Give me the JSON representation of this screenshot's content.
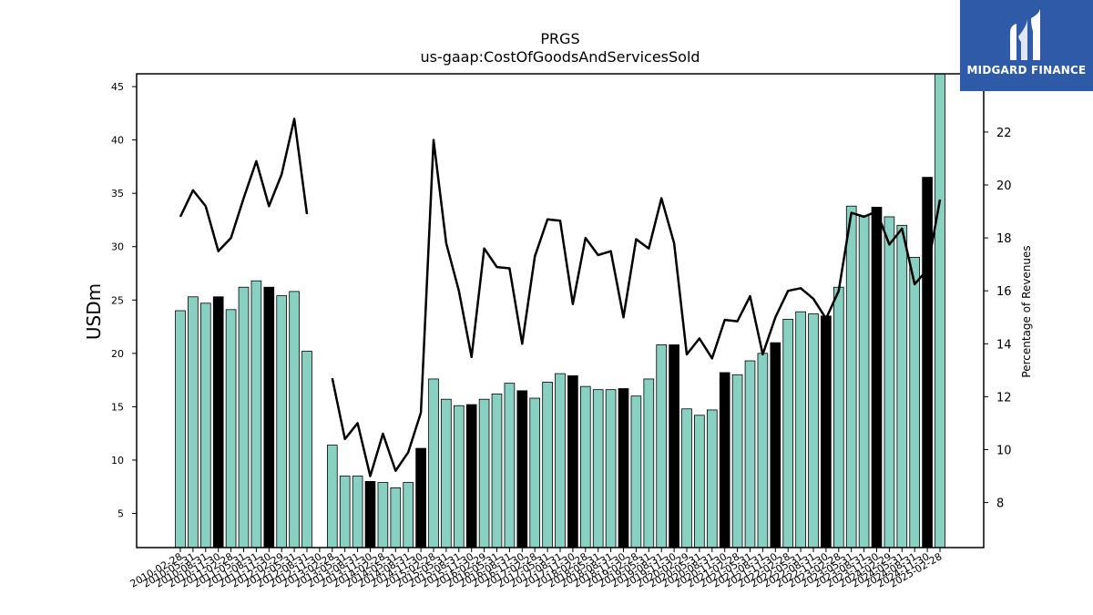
{
  "brand": {
    "name": "MIDGARD FINANCE",
    "mark": "logo-icon"
  },
  "chart_data": {
    "type": "bar",
    "title": "PRGS",
    "subtitle": "us-gaap:CostOfGoodsAndServicesSold",
    "ylabel": "USDm",
    "y2label": "Percentage of Revenues",
    "ylim": [
      1.8,
      46.2
    ],
    "y2lim": [
      6.3,
      24.2
    ],
    "yticks": [
      5,
      10,
      15,
      20,
      25,
      30,
      35,
      40,
      45
    ],
    "y2ticks": [
      8,
      10,
      12,
      14,
      16,
      18,
      20,
      22
    ],
    "colors": {
      "quarter": "#88d1c2",
      "annual": "#000000",
      "line": "#000000"
    },
    "categories": [
      "2010-02-28",
      "2010-05-31",
      "2010-08-31",
      "2010-11-30",
      "2011-02-28",
      "2011-05-31",
      "2011-08-31",
      "2011-11-30",
      "2012-02-29",
      "2012-05-31",
      "2012-08-31",
      "2012-11-30",
      "2013-02-28",
      "2013-05-31",
      "2013-08-31",
      "2013-11-30",
      "2014-02-28",
      "2014-05-31",
      "2014-08-31",
      "2014-11-30",
      "2015-02-28",
      "2015-05-31",
      "2015-08-31",
      "2015-11-30",
      "2016-02-29",
      "2016-05-31",
      "2016-08-31",
      "2016-11-30",
      "2017-02-28",
      "2017-05-31",
      "2017-08-31",
      "2017-11-30",
      "2018-02-28",
      "2018-05-31",
      "2018-08-31",
      "2018-11-30",
      "2019-02-28",
      "2019-05-31",
      "2019-08-31",
      "2019-11-30",
      "2020-02-29",
      "2020-05-31",
      "2020-08-31",
      "2020-11-30",
      "2021-02-28",
      "2021-05-31",
      "2021-08-31",
      "2021-11-30",
      "2022-02-28",
      "2022-05-31",
      "2022-08-31",
      "2022-11-30",
      "2023-02-28",
      "2023-05-31",
      "2023-08-31",
      "2023-11-30",
      "2024-02-29",
      "2024-05-31",
      "2024-08-31",
      "2024-11-30",
      "2025-02-28"
    ],
    "xtick_labels": [
      "2010-02-28",
      "2010-05-31",
      "2010-08-31",
      "2010-11-30",
      "2011-02-28",
      "2011-05-31",
      "2011-08-31",
      "2011-11-30",
      "2012-02-29",
      "2012-05-31",
      "2012-08-31",
      "2012-11-30",
      "2013-02-28",
      "2013-05-31",
      "2013-08-31",
      "2013-11-30",
      "2014-02-28",
      "2014-05-31",
      "2014-08-31",
      "2014-11-30",
      "2015-02-28",
      "2015-05-31",
      "2015-08-31",
      "2015-11-30",
      "2016-02-29",
      "2016-05-31",
      "2016-08-31",
      "2016-11-30",
      "2017-02-28",
      "2017-05-31",
      "2017-08-31",
      "2017-11-30",
      "2018-02-28",
      "2018-05-31",
      "2018-08-31",
      "2018-11-30",
      "2019-02-28",
      "2019-05-31",
      "2019-08-31",
      "2019-11-30",
      "2020-02-29",
      "2020-05-31",
      "2020-08-31",
      "2020-11-30",
      "2021-02-28",
      "2021-05-31",
      "2021-08-31",
      "2021-11-30",
      "2022-02-28",
      "2022-05-31",
      "2022-08-31",
      "2022-11-30",
      "2023-02-28",
      "2023-05-31",
      "2023-08-31",
      "2023-11-30",
      "2024-02-29",
      "2024-05-31",
      "2024-08-31",
      "2024-11-30",
      "2025-02-28"
    ],
    "series": [
      {
        "type": "bar",
        "axis": "left",
        "values": [
          24.0,
          25.3,
          24.7,
          25.3,
          24.1,
          26.2,
          26.8,
          26.2,
          25.4,
          25.8,
          20.2,
          null,
          11.4,
          8.5,
          8.5,
          8.0,
          7.9,
          7.4,
          7.9,
          11.1,
          17.6,
          15.7,
          15.1,
          15.2,
          15.7,
          16.2,
          17.2,
          16.5,
          15.8,
          17.3,
          18.1,
          17.9,
          16.9,
          16.6,
          16.6,
          16.7,
          16.0,
          17.6,
          20.8,
          20.8,
          14.8,
          14.2,
          14.7,
          18.2,
          18.0,
          19.3,
          20.0,
          21.0,
          23.2,
          23.9,
          23.7,
          23.5,
          26.2,
          33.8,
          32.9,
          33.7,
          32.8,
          32.0,
          29.0,
          36.5,
          46.4
        ],
        "highlight": [
          false,
          false,
          false,
          true,
          false,
          false,
          false,
          true,
          false,
          false,
          false,
          true,
          false,
          false,
          false,
          true,
          false,
          false,
          false,
          true,
          false,
          false,
          false,
          true,
          false,
          false,
          false,
          true,
          false,
          false,
          false,
          true,
          false,
          false,
          false,
          true,
          false,
          false,
          false,
          true,
          false,
          false,
          false,
          true,
          false,
          false,
          false,
          true,
          false,
          false,
          false,
          true,
          false,
          false,
          false,
          true,
          false,
          false,
          false,
          true,
          false
        ]
      },
      {
        "type": "line",
        "axis": "right",
        "values": [
          18.8,
          19.8,
          19.2,
          17.5,
          18.0,
          19.5,
          20.9,
          19.2,
          20.4,
          22.5,
          18.9,
          null,
          12.7,
          10.4,
          11.0,
          9.0,
          10.6,
          9.2,
          9.9,
          11.4,
          21.7,
          17.8,
          16.0,
          13.5,
          17.6,
          16.9,
          16.85,
          14.0,
          17.3,
          18.7,
          18.65,
          15.5,
          18.0,
          17.35,
          17.5,
          15.0,
          17.95,
          17.6,
          19.5,
          17.8,
          13.6,
          14.2,
          13.45,
          14.9,
          14.85,
          15.8,
          13.6,
          15.0,
          16.0,
          16.1,
          15.7,
          14.95,
          16.0,
          18.95,
          18.8,
          19.0,
          17.75,
          18.35,
          16.25,
          16.8,
          19.45
        ]
      }
    ]
  }
}
